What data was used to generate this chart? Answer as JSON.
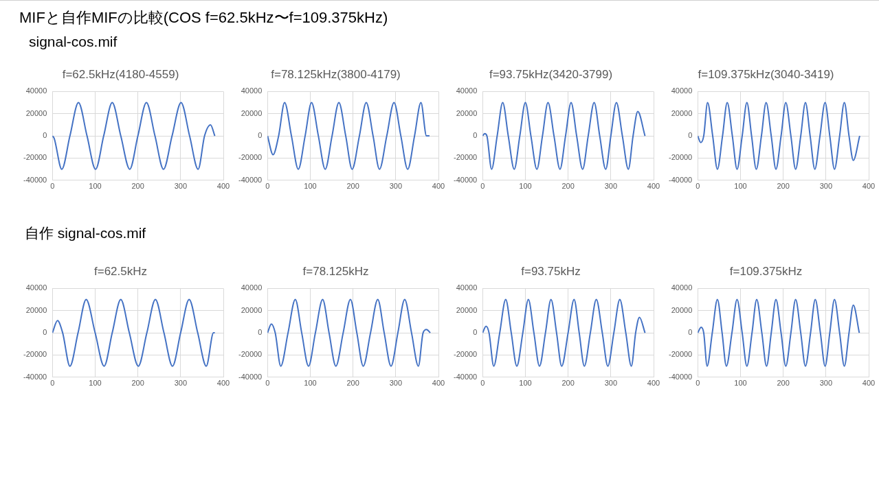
{
  "chart_data": [
    {
      "type": "other",
      "title": "MIFと自作MIFの比較(COS f=62.5kHz〜f=109.375kHz)",
      "subtitle": "signal-cos.mif"
    },
    {
      "type": "line",
      "title": "f=62.5kHz(4180-4559)",
      "color": "#4472c4",
      "xlim": [
        0,
        400
      ],
      "xticks": [
        0,
        100,
        200,
        300,
        400
      ],
      "ylim": [
        -40000,
        40000
      ],
      "yticks": [
        -40000,
        -20000,
        0,
        20000,
        40000
      ],
      "grid": true,
      "x": [
        0,
        4,
        22,
        41,
        61,
        81,
        101,
        120,
        140,
        160,
        181,
        200,
        220,
        240,
        260,
        280,
        301,
        321,
        341,
        356,
        370,
        380
      ],
      "values": [
        0,
        -2000,
        -30000,
        0,
        30000,
        0,
        -30000,
        0,
        30000,
        0,
        -30000,
        0,
        30000,
        0,
        -30000,
        0,
        30000,
        0,
        -30000,
        0,
        10000,
        0
      ]
    },
    {
      "type": "line",
      "title": "f=78.125kHz(3800-4179)",
      "color": "#4472c4",
      "xlim": [
        0,
        400
      ],
      "xticks": [
        0,
        100,
        200,
        300,
        400
      ],
      "ylim": [
        -40000,
        40000
      ],
      "yticks": [
        -40000,
        -20000,
        0,
        20000,
        40000
      ],
      "grid": true,
      "x": [
        0,
        13,
        26,
        40,
        56,
        72,
        88,
        103,
        119,
        135,
        151,
        167,
        183,
        198,
        215,
        231,
        247,
        262,
        279,
        296,
        312,
        328,
        344,
        359,
        372,
        379
      ],
      "values": [
        0,
        -17000,
        0,
        30000,
        0,
        -30000,
        0,
        30000,
        0,
        -30000,
        0,
        30000,
        0,
        -30000,
        0,
        30000,
        0,
        -30000,
        0,
        30000,
        0,
        -30000,
        0,
        30000,
        0,
        0
      ]
    },
    {
      "type": "line",
      "title": "f=93.75kHz(3420-3799)",
      "color": "#4472c4",
      "xlim": [
        0,
        400
      ],
      "xticks": [
        0,
        100,
        200,
        300,
        400
      ],
      "ylim": [
        -40000,
        40000
      ],
      "yticks": [
        -40000,
        -20000,
        0,
        20000,
        40000
      ],
      "grid": true,
      "x": [
        0,
        5,
        10,
        21,
        34,
        47,
        60,
        74,
        87,
        100,
        113,
        127,
        140,
        153,
        167,
        181,
        194,
        207,
        220,
        234,
        247,
        261,
        274,
        288,
        300,
        313,
        327,
        341,
        352,
        363,
        380
      ],
      "values": [
        0,
        2000,
        0,
        -30000,
        0,
        30000,
        0,
        -30000,
        0,
        30000,
        0,
        -30000,
        0,
        30000,
        0,
        -30000,
        0,
        30000,
        0,
        -30000,
        0,
        30000,
        0,
        -30000,
        0,
        30000,
        0,
        -30000,
        0,
        22000,
        0
      ]
    },
    {
      "type": "line",
      "title": "f=109.375kHz(3040-3419)",
      "color": "#4472c4",
      "xlim": [
        0,
        400
      ],
      "xticks": [
        0,
        100,
        200,
        300,
        400
      ],
      "ylim": [
        -40000,
        40000
      ],
      "yticks": [
        -40000,
        -20000,
        0,
        20000,
        40000
      ],
      "grid": true,
      "x": [
        0,
        7,
        14,
        23,
        35,
        46,
        58,
        69,
        81,
        92,
        104,
        115,
        126,
        137,
        149,
        160,
        172,
        183,
        195,
        206,
        218,
        229,
        241,
        252,
        263,
        274,
        286,
        298,
        309,
        320,
        332,
        343,
        354,
        364,
        379
      ],
      "values": [
        0,
        -6000,
        0,
        30000,
        0,
        -30000,
        0,
        30000,
        0,
        -30000,
        0,
        30000,
        0,
        -30000,
        0,
        30000,
        0,
        -30000,
        0,
        30000,
        0,
        -30000,
        0,
        30000,
        0,
        -30000,
        0,
        30000,
        0,
        -30000,
        0,
        30000,
        0,
        -22000,
        0
      ]
    },
    {
      "type": "other",
      "title": "自作 signal-cos.mif"
    },
    {
      "type": "line",
      "title": "f=62.5kHz",
      "color": "#4472c4",
      "xlim": [
        0,
        400
      ],
      "xticks": [
        0,
        100,
        200,
        300,
        400
      ],
      "ylim": [
        -40000,
        40000
      ],
      "yticks": [
        -40000,
        -20000,
        0,
        20000,
        40000
      ],
      "grid": true,
      "x": [
        0,
        12,
        24,
        41,
        60,
        79,
        100,
        121,
        140,
        160,
        180,
        201,
        221,
        241,
        261,
        281,
        300,
        320,
        340,
        360,
        377,
        380
      ],
      "values": [
        0,
        11000,
        0,
        -30000,
        0,
        30000,
        0,
        -30000,
        0,
        30000,
        0,
        -30000,
        0,
        30000,
        0,
        -30000,
        0,
        30000,
        0,
        -30000,
        0,
        0
      ]
    },
    {
      "type": "line",
      "title": "f=78.125kHz",
      "color": "#4472c4",
      "xlim": [
        0,
        400
      ],
      "xticks": [
        0,
        100,
        200,
        300,
        400
      ],
      "ylim": [
        -40000,
        40000
      ],
      "yticks": [
        -40000,
        -20000,
        0,
        20000,
        40000
      ],
      "grid": true,
      "x": [
        0,
        9,
        18,
        31,
        48,
        65,
        80,
        96,
        112,
        129,
        144,
        160,
        177,
        194,
        209,
        224,
        241,
        258,
        273,
        289,
        305,
        321,
        337,
        353,
        364,
        372,
        381
      ],
      "values": [
        0,
        8000,
        0,
        -30000,
        0,
        30000,
        0,
        -30000,
        0,
        30000,
        0,
        -30000,
        0,
        30000,
        0,
        -30000,
        0,
        30000,
        0,
        -30000,
        0,
        30000,
        0,
        -30000,
        0,
        3000,
        0
      ]
    },
    {
      "type": "line",
      "title": "f=93.75kHz",
      "color": "#4472c4",
      "xlim": [
        0,
        400
      ],
      "xticks": [
        0,
        100,
        200,
        300,
        400
      ],
      "ylim": [
        -40000,
        40000
      ],
      "yticks": [
        -40000,
        -20000,
        0,
        20000,
        40000
      ],
      "grid": true,
      "x": [
        0,
        8,
        15,
        26,
        40,
        54,
        67,
        80,
        94,
        107,
        120,
        133,
        147,
        160,
        173,
        185,
        200,
        214,
        226,
        238,
        252,
        266,
        280,
        293,
        307,
        321,
        335,
        348,
        358,
        367,
        380
      ],
      "values": [
        0,
        6000,
        0,
        -30000,
        0,
        30000,
        0,
        -30000,
        0,
        30000,
        0,
        -30000,
        0,
        30000,
        0,
        -30000,
        0,
        30000,
        0,
        -30000,
        0,
        30000,
        0,
        -30000,
        0,
        30000,
        0,
        -30000,
        0,
        14000,
        0
      ]
    },
    {
      "type": "line",
      "title": "f=109.375kHz",
      "color": "#4472c4",
      "xlim": [
        0,
        400
      ],
      "xticks": [
        0,
        100,
        200,
        300,
        400
      ],
      "ylim": [
        -40000,
        40000
      ],
      "yticks": [
        -40000,
        -20000,
        0,
        20000,
        40000
      ],
      "grid": true,
      "x": [
        0,
        8,
        14,
        22,
        34,
        46,
        57,
        67,
        80,
        92,
        104,
        115,
        127,
        138,
        150,
        161,
        172,
        183,
        195,
        206,
        218,
        229,
        241,
        252,
        264,
        275,
        287,
        298,
        309,
        320,
        332,
        343,
        354,
        364,
        378
      ],
      "values": [
        0,
        5000,
        0,
        -30000,
        0,
        30000,
        0,
        -30000,
        0,
        30000,
        0,
        -30000,
        0,
        30000,
        0,
        -30000,
        0,
        30000,
        0,
        -30000,
        0,
        30000,
        0,
        -30000,
        0,
        30000,
        0,
        -30000,
        0,
        30000,
        0,
        -30000,
        0,
        25000,
        0
      ]
    }
  ]
}
